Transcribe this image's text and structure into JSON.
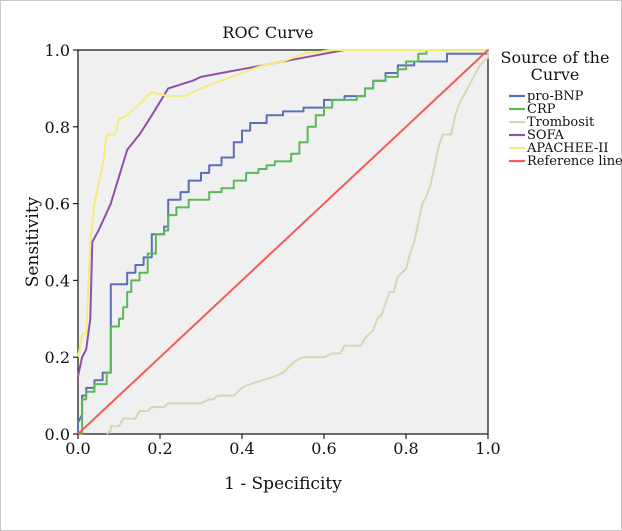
{
  "chart_data": {
    "type": "line",
    "title": "ROC Curve",
    "xlabel": "1 - Specificity",
    "ylabel": "Sensitivity",
    "xlim": [
      0,
      1
    ],
    "ylim": [
      0,
      1
    ],
    "xticks": [
      "0.0",
      "0.2",
      "0.4",
      "0.6",
      "0.8",
      "1.0"
    ],
    "yticks": [
      "0.0",
      "0.2",
      "0.4",
      "0.6",
      "0.8",
      "1.0"
    ],
    "grid": false,
    "legend": {
      "title_line1": "Source of the",
      "title_line2": "Curve",
      "placement": "right"
    },
    "series": [
      {
        "name": "pro-BNP",
        "color": "#5b6fb8",
        "points": [
          [
            0,
            0
          ],
          [
            0,
            0.03
          ],
          [
            0.01,
            0.05
          ],
          [
            0.01,
            0.1
          ],
          [
            0.02,
            0.1
          ],
          [
            0.02,
            0.12
          ],
          [
            0.04,
            0.12
          ],
          [
            0.04,
            0.14
          ],
          [
            0.06,
            0.14
          ],
          [
            0.06,
            0.16
          ],
          [
            0.08,
            0.16
          ],
          [
            0.08,
            0.39
          ],
          [
            0.12,
            0.39
          ],
          [
            0.12,
            0.42
          ],
          [
            0.14,
            0.42
          ],
          [
            0.14,
            0.44
          ],
          [
            0.16,
            0.44
          ],
          [
            0.16,
            0.46
          ],
          [
            0.18,
            0.46
          ],
          [
            0.18,
            0.52
          ],
          [
            0.21,
            0.52
          ],
          [
            0.21,
            0.54
          ],
          [
            0.22,
            0.54
          ],
          [
            0.22,
            0.61
          ],
          [
            0.25,
            0.61
          ],
          [
            0.25,
            0.63
          ],
          [
            0.27,
            0.63
          ],
          [
            0.27,
            0.66
          ],
          [
            0.3,
            0.66
          ],
          [
            0.3,
            0.68
          ],
          [
            0.32,
            0.68
          ],
          [
            0.32,
            0.7
          ],
          [
            0.35,
            0.7
          ],
          [
            0.35,
            0.72
          ],
          [
            0.38,
            0.72
          ],
          [
            0.38,
            0.76
          ],
          [
            0.4,
            0.76
          ],
          [
            0.4,
            0.79
          ],
          [
            0.42,
            0.79
          ],
          [
            0.42,
            0.81
          ],
          [
            0.46,
            0.81
          ],
          [
            0.46,
            0.83
          ],
          [
            0.5,
            0.83
          ],
          [
            0.5,
            0.84
          ],
          [
            0.55,
            0.84
          ],
          [
            0.55,
            0.85
          ],
          [
            0.6,
            0.85
          ],
          [
            0.6,
            0.87
          ],
          [
            0.65,
            0.87
          ],
          [
            0.65,
            0.88
          ],
          [
            0.7,
            0.88
          ],
          [
            0.7,
            0.9
          ],
          [
            0.72,
            0.9
          ],
          [
            0.72,
            0.92
          ],
          [
            0.75,
            0.92
          ],
          [
            0.75,
            0.94
          ],
          [
            0.78,
            0.94
          ],
          [
            0.78,
            0.96
          ],
          [
            0.82,
            0.96
          ],
          [
            0.82,
            0.97
          ],
          [
            0.9,
            0.97
          ],
          [
            0.9,
            0.99
          ],
          [
            1,
            0.99
          ],
          [
            1,
            1
          ]
        ]
      },
      {
        "name": "CRP",
        "color": "#5ab85a",
        "points": [
          [
            0,
            0
          ],
          [
            0.01,
            0
          ],
          [
            0.01,
            0.09
          ],
          [
            0.02,
            0.09
          ],
          [
            0.02,
            0.11
          ],
          [
            0.04,
            0.11
          ],
          [
            0.04,
            0.13
          ],
          [
            0.07,
            0.13
          ],
          [
            0.07,
            0.16
          ],
          [
            0.08,
            0.16
          ],
          [
            0.08,
            0.28
          ],
          [
            0.1,
            0.28
          ],
          [
            0.1,
            0.3
          ],
          [
            0.11,
            0.3
          ],
          [
            0.11,
            0.33
          ],
          [
            0.12,
            0.33
          ],
          [
            0.12,
            0.37
          ],
          [
            0.13,
            0.37
          ],
          [
            0.13,
            0.4
          ],
          [
            0.15,
            0.4
          ],
          [
            0.15,
            0.42
          ],
          [
            0.17,
            0.42
          ],
          [
            0.17,
            0.47
          ],
          [
            0.19,
            0.47
          ],
          [
            0.19,
            0.52
          ],
          [
            0.21,
            0.52
          ],
          [
            0.21,
            0.53
          ],
          [
            0.22,
            0.53
          ],
          [
            0.22,
            0.57
          ],
          [
            0.24,
            0.57
          ],
          [
            0.24,
            0.59
          ],
          [
            0.27,
            0.59
          ],
          [
            0.27,
            0.61
          ],
          [
            0.32,
            0.61
          ],
          [
            0.32,
            0.63
          ],
          [
            0.35,
            0.63
          ],
          [
            0.35,
            0.64
          ],
          [
            0.38,
            0.64
          ],
          [
            0.38,
            0.66
          ],
          [
            0.41,
            0.66
          ],
          [
            0.41,
            0.68
          ],
          [
            0.44,
            0.68
          ],
          [
            0.44,
            0.69
          ],
          [
            0.46,
            0.69
          ],
          [
            0.46,
            0.7
          ],
          [
            0.48,
            0.7
          ],
          [
            0.48,
            0.71
          ],
          [
            0.52,
            0.71
          ],
          [
            0.52,
            0.73
          ],
          [
            0.54,
            0.73
          ],
          [
            0.54,
            0.76
          ],
          [
            0.56,
            0.76
          ],
          [
            0.56,
            0.8
          ],
          [
            0.58,
            0.8
          ],
          [
            0.58,
            0.83
          ],
          [
            0.6,
            0.83
          ],
          [
            0.6,
            0.85
          ],
          [
            0.62,
            0.85
          ],
          [
            0.62,
            0.87
          ],
          [
            0.68,
            0.87
          ],
          [
            0.68,
            0.88
          ],
          [
            0.7,
            0.88
          ],
          [
            0.7,
            0.9
          ],
          [
            0.72,
            0.9
          ],
          [
            0.72,
            0.92
          ],
          [
            0.75,
            0.92
          ],
          [
            0.75,
            0.93
          ],
          [
            0.78,
            0.93
          ],
          [
            0.78,
            0.95
          ],
          [
            0.8,
            0.95
          ],
          [
            0.8,
            0.97
          ],
          [
            0.83,
            0.97
          ],
          [
            0.83,
            0.99
          ],
          [
            0.85,
            0.99
          ],
          [
            0.85,
            1
          ],
          [
            1,
            1
          ]
        ]
      },
      {
        "name": "Trombosit",
        "color": "#d7d5b3",
        "points": [
          [
            0.07,
            0
          ],
          [
            0.08,
            0.01
          ],
          [
            0.08,
            0.02
          ],
          [
            0.1,
            0.02
          ],
          [
            0.11,
            0.04
          ],
          [
            0.14,
            0.04
          ],
          [
            0.15,
            0.06
          ],
          [
            0.17,
            0.06
          ],
          [
            0.18,
            0.07
          ],
          [
            0.21,
            0.07
          ],
          [
            0.22,
            0.08
          ],
          [
            0.3,
            0.08
          ],
          [
            0.32,
            0.09
          ],
          [
            0.33,
            0.09
          ],
          [
            0.34,
            0.1
          ],
          [
            0.38,
            0.1
          ],
          [
            0.4,
            0.12
          ],
          [
            0.42,
            0.13
          ],
          [
            0.45,
            0.14
          ],
          [
            0.48,
            0.15
          ],
          [
            0.5,
            0.16
          ],
          [
            0.52,
            0.18
          ],
          [
            0.53,
            0.19
          ],
          [
            0.55,
            0.2
          ],
          [
            0.6,
            0.2
          ],
          [
            0.62,
            0.21
          ],
          [
            0.64,
            0.21
          ],
          [
            0.65,
            0.23
          ],
          [
            0.69,
            0.23
          ],
          [
            0.7,
            0.25
          ],
          [
            0.72,
            0.27
          ],
          [
            0.73,
            0.3
          ],
          [
            0.74,
            0.31
          ],
          [
            0.75,
            0.34
          ],
          [
            0.76,
            0.37
          ],
          [
            0.77,
            0.37
          ],
          [
            0.78,
            0.41
          ],
          [
            0.8,
            0.43
          ],
          [
            0.81,
            0.47
          ],
          [
            0.82,
            0.5
          ],
          [
            0.83,
            0.55
          ],
          [
            0.84,
            0.6
          ],
          [
            0.85,
            0.62
          ],
          [
            0.86,
            0.65
          ],
          [
            0.87,
            0.7
          ],
          [
            0.88,
            0.75
          ],
          [
            0.89,
            0.78
          ],
          [
            0.91,
            0.78
          ],
          [
            0.92,
            0.83
          ],
          [
            0.93,
            0.86
          ],
          [
            0.94,
            0.88
          ],
          [
            0.95,
            0.9
          ],
          [
            0.96,
            0.92
          ],
          [
            0.97,
            0.94
          ],
          [
            0.98,
            0.96
          ],
          [
            0.99,
            0.97
          ],
          [
            1,
            0.98
          ],
          [
            1,
            1
          ]
        ]
      },
      {
        "name": "SOFA",
        "color": "#9050a8",
        "points": [
          [
            0,
            0.15
          ],
          [
            0.01,
            0.2
          ],
          [
            0.02,
            0.22
          ],
          [
            0.03,
            0.3
          ],
          [
            0.035,
            0.5
          ],
          [
            0.05,
            0.53
          ],
          [
            0.08,
            0.6
          ],
          [
            0.1,
            0.67
          ],
          [
            0.12,
            0.74
          ],
          [
            0.15,
            0.78
          ],
          [
            0.18,
            0.83
          ],
          [
            0.22,
            0.9
          ],
          [
            0.25,
            0.91
          ],
          [
            0.28,
            0.92
          ],
          [
            0.3,
            0.93
          ],
          [
            0.35,
            0.94
          ],
          [
            0.4,
            0.95
          ],
          [
            0.45,
            0.96
          ],
          [
            0.5,
            0.97
          ],
          [
            0.55,
            0.98
          ],
          [
            0.6,
            0.99
          ],
          [
            0.65,
            1
          ],
          [
            1,
            1
          ]
        ]
      },
      {
        "name": "APACHEE-II",
        "color": "#f2ec7a",
        "points": [
          [
            0,
            0.2
          ],
          [
            0.01,
            0.26
          ],
          [
            0.02,
            0.26
          ],
          [
            0.03,
            0.5
          ],
          [
            0.04,
            0.6
          ],
          [
            0.06,
            0.7
          ],
          [
            0.07,
            0.78
          ],
          [
            0.09,
            0.78
          ],
          [
            0.1,
            0.82
          ],
          [
            0.12,
            0.83
          ],
          [
            0.15,
            0.86
          ],
          [
            0.18,
            0.89
          ],
          [
            0.22,
            0.88
          ],
          [
            0.26,
            0.88
          ],
          [
            0.3,
            0.9
          ],
          [
            0.35,
            0.92
          ],
          [
            0.4,
            0.94
          ],
          [
            0.45,
            0.96
          ],
          [
            0.5,
            0.97
          ],
          [
            0.55,
            0.99
          ],
          [
            0.62,
            1
          ],
          [
            1,
            1
          ]
        ]
      },
      {
        "name": "Reference line",
        "color": "#f25c5c",
        "points": [
          [
            0,
            0
          ],
          [
            1,
            1
          ]
        ]
      }
    ]
  }
}
